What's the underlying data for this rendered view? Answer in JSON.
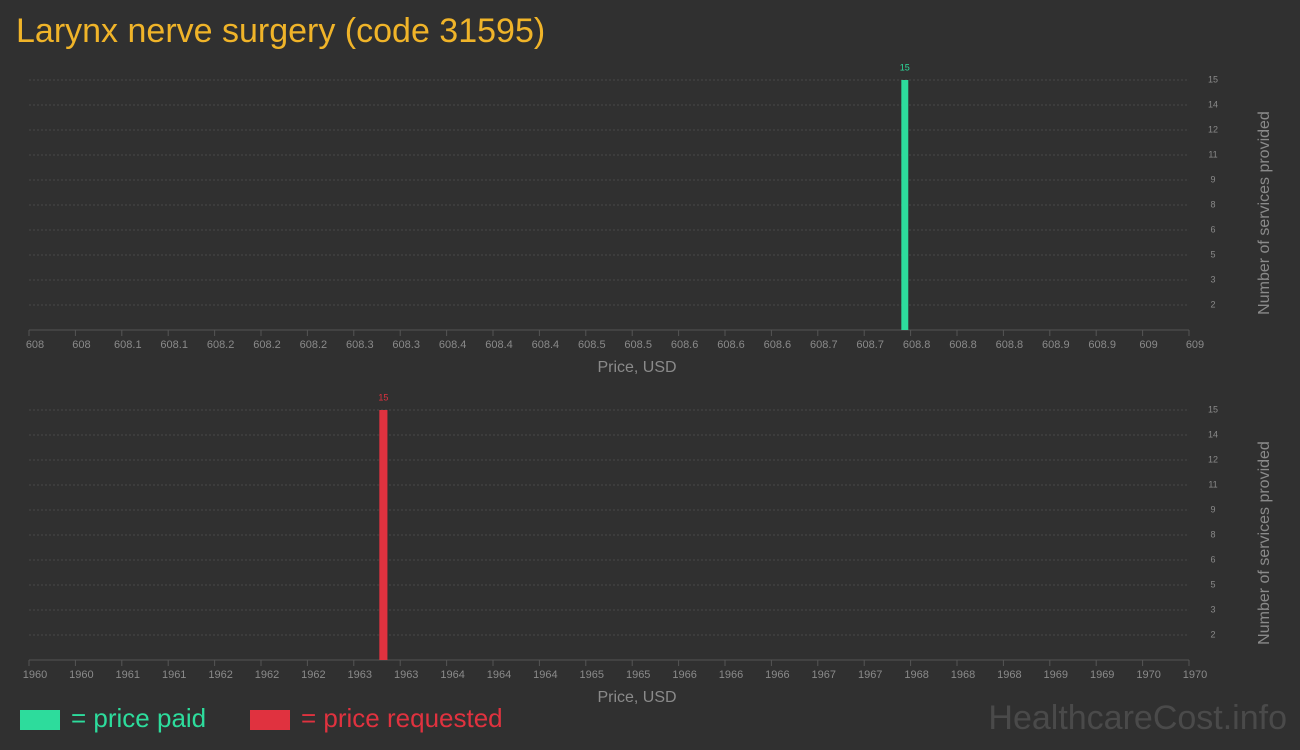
{
  "page": {
    "title": "Larynx nerve surgery (code 31595)",
    "watermark": "HealthcareCost.info"
  },
  "chart_data": [
    {
      "type": "histogram",
      "xlabel": "Price, USD",
      "ylabel": "Number of services provided",
      "bins": [
        608.752,
        608.758
      ],
      "series": [
        {
          "name": "= price paid",
          "color": "#2ddc9c",
          "values": [
            15
          ]
        }
      ],
      "xlim": [
        608,
        609
      ],
      "xticks": [
        {
          "value": 608,
          "label": "608"
        },
        {
          "value": 608.04,
          "label": "608"
        },
        {
          "value": 608.08,
          "label": "608.1"
        },
        {
          "value": 608.12,
          "label": "608.1"
        },
        {
          "value": 608.16,
          "label": "608.2"
        },
        {
          "value": 608.2,
          "label": "608.2"
        },
        {
          "value": 608.24,
          "label": "608.2"
        },
        {
          "value": 608.28,
          "label": "608.3"
        },
        {
          "value": 608.32,
          "label": "608.3"
        },
        {
          "value": 608.36,
          "label": "608.4"
        },
        {
          "value": 608.4,
          "label": "608.4"
        },
        {
          "value": 608.44,
          "label": "608.4"
        },
        {
          "value": 608.48,
          "label": "608.5"
        },
        {
          "value": 608.52,
          "label": "608.5"
        },
        {
          "value": 608.56,
          "label": "608.6"
        },
        {
          "value": 608.6,
          "label": "608.6"
        },
        {
          "value": 608.64,
          "label": "608.6"
        },
        {
          "value": 608.68,
          "label": "608.7"
        },
        {
          "value": 608.72,
          "label": "608.7"
        },
        {
          "value": 608.76,
          "label": "608.8"
        },
        {
          "value": 608.8,
          "label": "608.8"
        },
        {
          "value": 608.84,
          "label": "608.8"
        },
        {
          "value": 608.88,
          "label": "608.9"
        },
        {
          "value": 608.92,
          "label": "608.9"
        },
        {
          "value": 608.96,
          "label": "609"
        },
        {
          "value": 609,
          "label": "609"
        }
      ],
      "ylim": [
        0,
        15
      ],
      "yticks": [
        {
          "value": 1.5,
          "label": "2"
        },
        3,
        {
          "value": 4.5,
          "label": "5"
        },
        6,
        {
          "value": 7.5,
          "label": "8"
        },
        9,
        {
          "value": 10.5,
          "label": "11"
        },
        12,
        {
          "value": 13.5,
          "label": "14"
        },
        15
      ],
      "grid": true
    },
    {
      "type": "histogram",
      "xlabel": "Price, USD",
      "ylabel": "Number of services provided",
      "bins": [
        1963.02,
        1963.09
      ],
      "series": [
        {
          "name": "= price requested",
          "color": "#e0323f",
          "values": [
            15
          ]
        }
      ],
      "xlim": [
        1960,
        1970
      ],
      "xticks": [
        {
          "value": 1960,
          "label": "1960"
        },
        {
          "value": 1960.4,
          "label": "1960"
        },
        {
          "value": 1960.8,
          "label": "1961"
        },
        {
          "value": 1961.2,
          "label": "1961"
        },
        {
          "value": 1961.6,
          "label": "1962"
        },
        {
          "value": 1962,
          "label": "1962"
        },
        {
          "value": 1962.4,
          "label": "1962"
        },
        {
          "value": 1962.8,
          "label": "1963"
        },
        {
          "value": 1963.2,
          "label": "1963"
        },
        {
          "value": 1963.6,
          "label": "1964"
        },
        {
          "value": 1964,
          "label": "1964"
        },
        {
          "value": 1964.4,
          "label": "1964"
        },
        {
          "value": 1964.8,
          "label": "1965"
        },
        {
          "value": 1965.2,
          "label": "1965"
        },
        {
          "value": 1965.6,
          "label": "1966"
        },
        {
          "value": 1966,
          "label": "1966"
        },
        {
          "value": 1966.4,
          "label": "1966"
        },
        {
          "value": 1966.8,
          "label": "1967"
        },
        {
          "value": 1967.2,
          "label": "1967"
        },
        {
          "value": 1967.6,
          "label": "1968"
        },
        {
          "value": 1968,
          "label": "1968"
        },
        {
          "value": 1968.4,
          "label": "1968"
        },
        {
          "value": 1968.8,
          "label": "1969"
        },
        {
          "value": 1969.2,
          "label": "1969"
        },
        {
          "value": 1969.6,
          "label": "1970"
        },
        {
          "value": 1970,
          "label": "1970"
        }
      ],
      "ylim": [
        0,
        15
      ],
      "yticks": [
        {
          "value": 1.5,
          "label": "2"
        },
        3,
        {
          "value": 4.5,
          "label": "5"
        },
        6,
        {
          "value": 7.5,
          "label": "8"
        },
        9,
        {
          "value": 10.5,
          "label": "11"
        },
        12,
        {
          "value": 13.5,
          "label": "14"
        },
        15
      ],
      "grid": true
    }
  ]
}
